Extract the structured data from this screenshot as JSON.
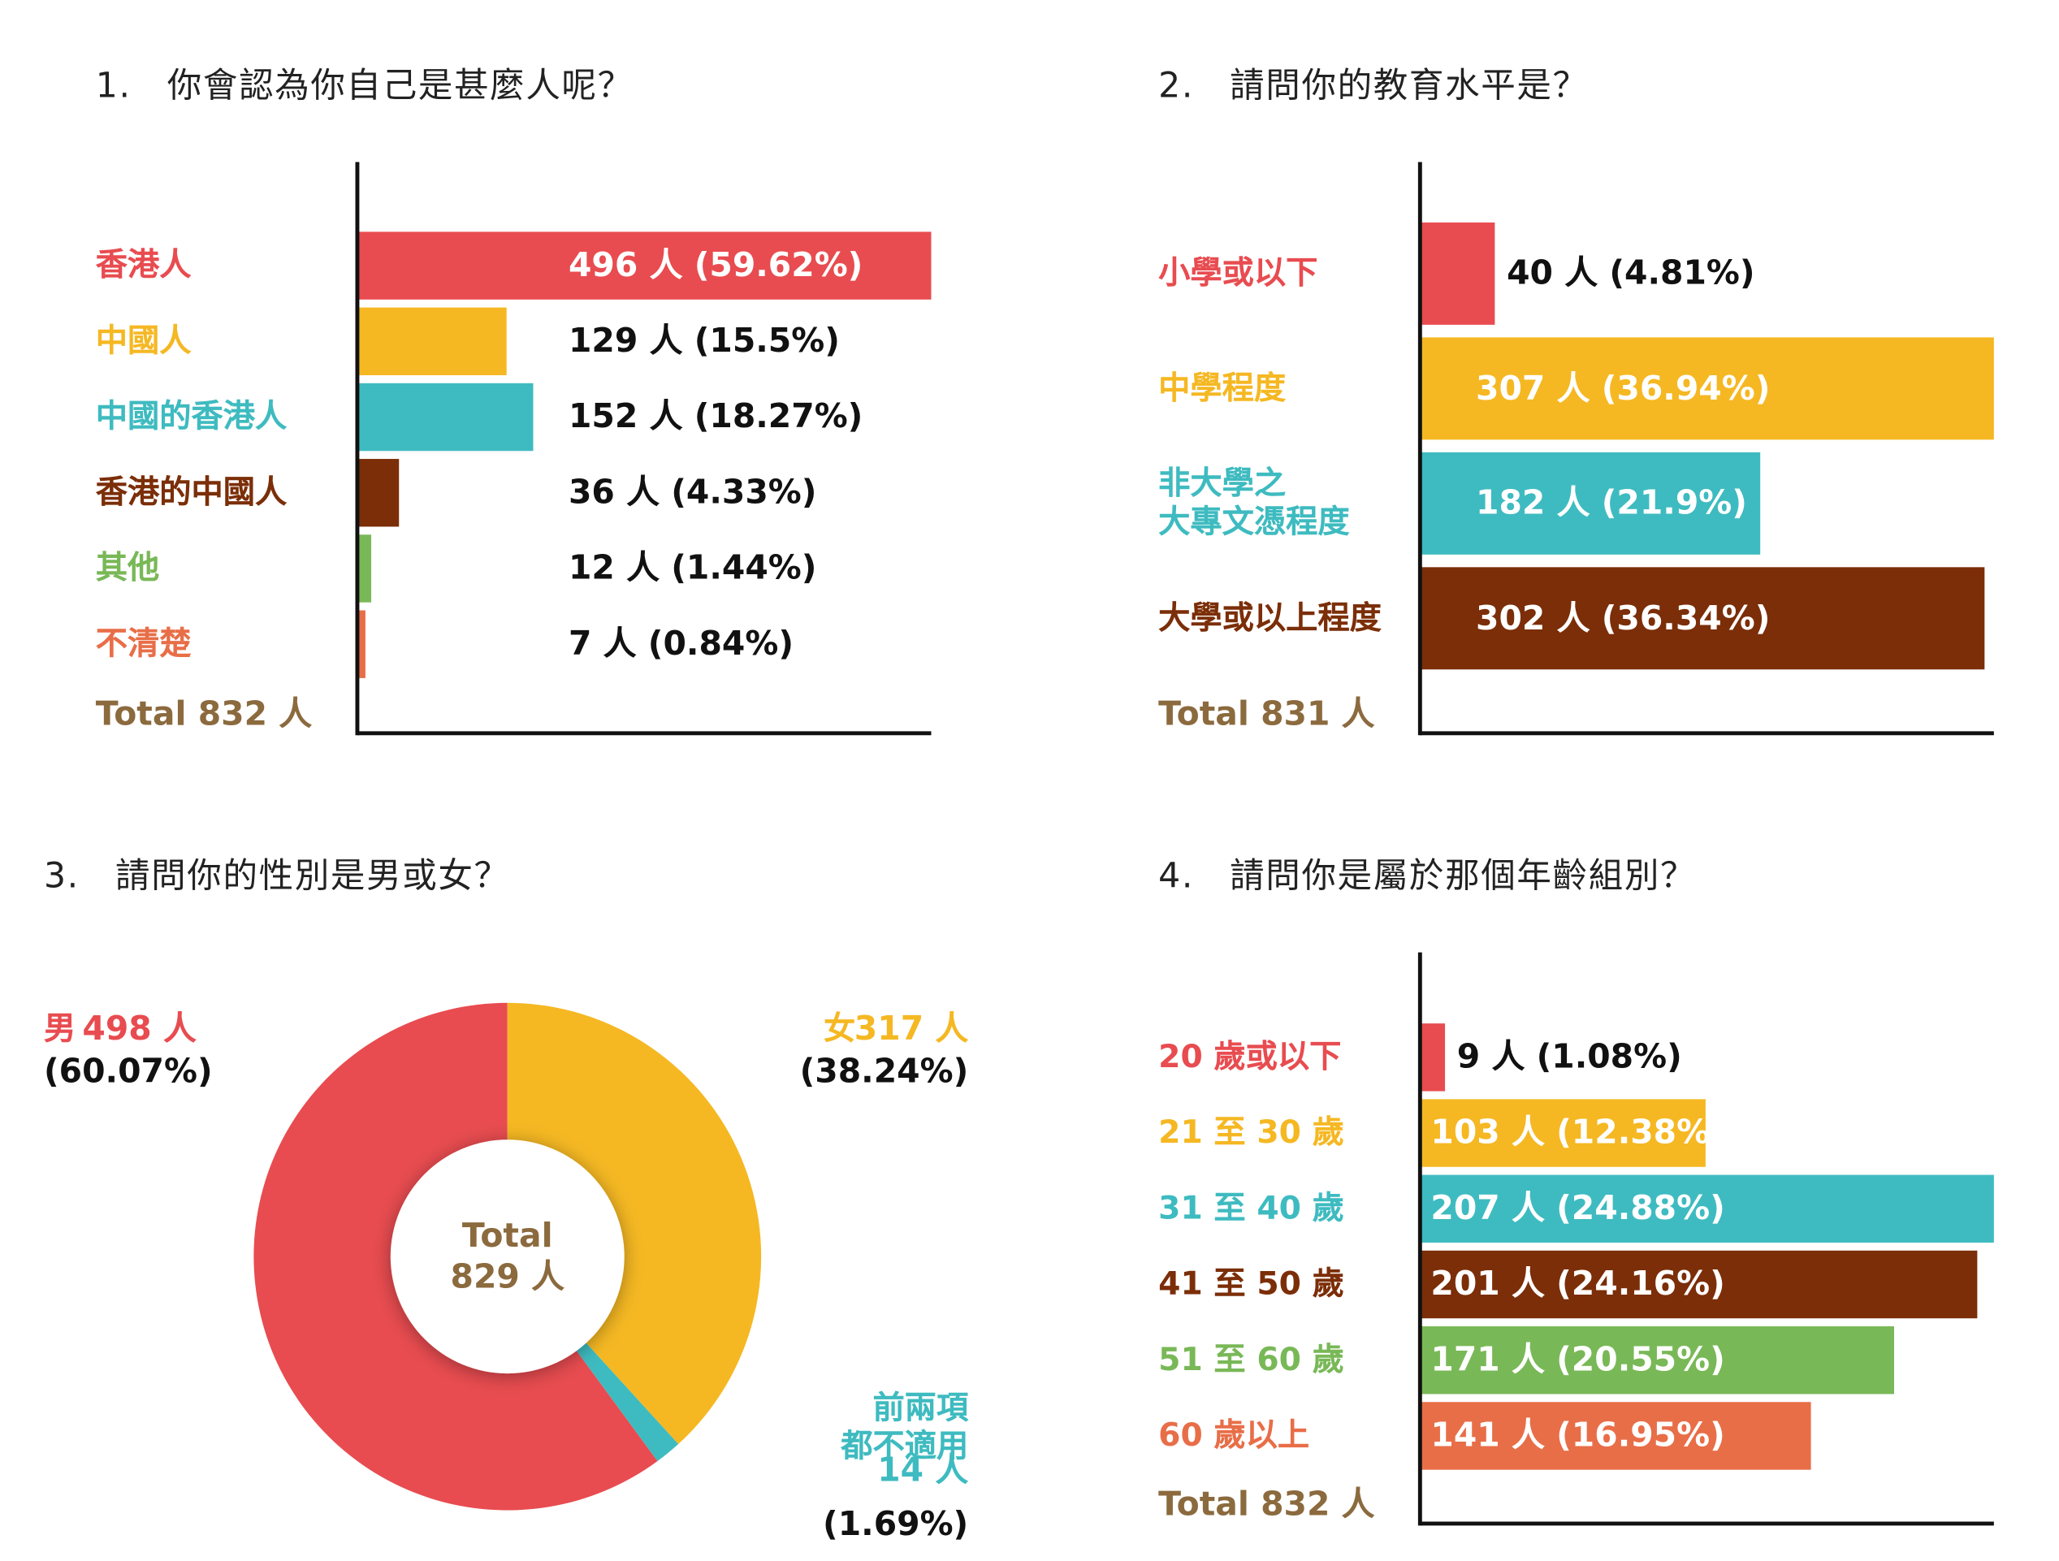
{
  "chart_data": [
    {
      "type": "bar",
      "orientation": "horizontal",
      "title": "1.　你會認為你自己是甚麼人呢？",
      "categories": [
        "香港人",
        "中國人",
        "中國的香港人",
        "香港的中國人",
        "其他",
        "不清楚"
      ],
      "values": [
        496,
        129,
        152,
        36,
        12,
        7
      ],
      "value_labels": [
        "496 人 (59.62%)",
        "129 人 (15.5%)",
        "152 人 (18.27%)",
        "36 人 (4.33%)",
        "12 人 (1.44%)",
        "7 人 (0.84%)"
      ],
      "colors": [
        "#e84c50",
        "#f5b823",
        "#3ebbc0",
        "#7b2e08",
        "#79b857",
        "#e86e48"
      ],
      "total_label": "Total 832 人"
    },
    {
      "type": "bar",
      "orientation": "horizontal",
      "title": "2.　請問你的教育水平是？",
      "categories": [
        "小學或以下",
        "中學程度",
        "非大學之\n大專文憑程度",
        "大學或以上程度"
      ],
      "values": [
        40,
        307,
        182,
        302
      ],
      "value_labels": [
        "40 人 (4.81%)",
        "307 人 (36.94%)",
        "182 人 (21.9%)",
        "302 人 (36.34%)"
      ],
      "colors": [
        "#e84c50",
        "#f5b823",
        "#3ebbc0",
        "#7b2e08"
      ],
      "total_label": "Total 831 人"
    },
    {
      "type": "pie",
      "donut": true,
      "title": "3.　請問你的性別是男或女？",
      "categories": [
        "男",
        "女",
        "前兩項\n都不適用"
      ],
      "values": [
        498,
        317,
        14
      ],
      "value_labels": [
        "498 人",
        "317 人",
        "14 人"
      ],
      "percent_labels": [
        "(60.07%)",
        "(38.24%)",
        "(1.69%)"
      ],
      "colors": [
        "#e84c50",
        "#f5b823",
        "#3ebbc0"
      ],
      "total_label": "Total\n829 人"
    },
    {
      "type": "bar",
      "orientation": "horizontal",
      "title": "4.　請問你是屬於那個年齡組別？",
      "categories": [
        "20 歲或以下",
        "21 至 30 歲",
        "31 至 40 歲",
        "41 至 50 歲",
        "51 至 60 歲",
        "60 歲以上"
      ],
      "values": [
        9,
        103,
        207,
        201,
        171,
        141
      ],
      "value_labels": [
        "9 人 (1.08%)",
        "103 人 (12.38%)",
        "207 人 (24.88%)",
        "201 人 (24.16%)",
        "171 人 (20.55%)",
        "141 人 (16.95%)"
      ],
      "colors": [
        "#e84c50",
        "#f5b823",
        "#3ebbc0",
        "#7b2e08",
        "#79b857",
        "#e86e48"
      ],
      "total_label": "Total 832 人"
    }
  ]
}
